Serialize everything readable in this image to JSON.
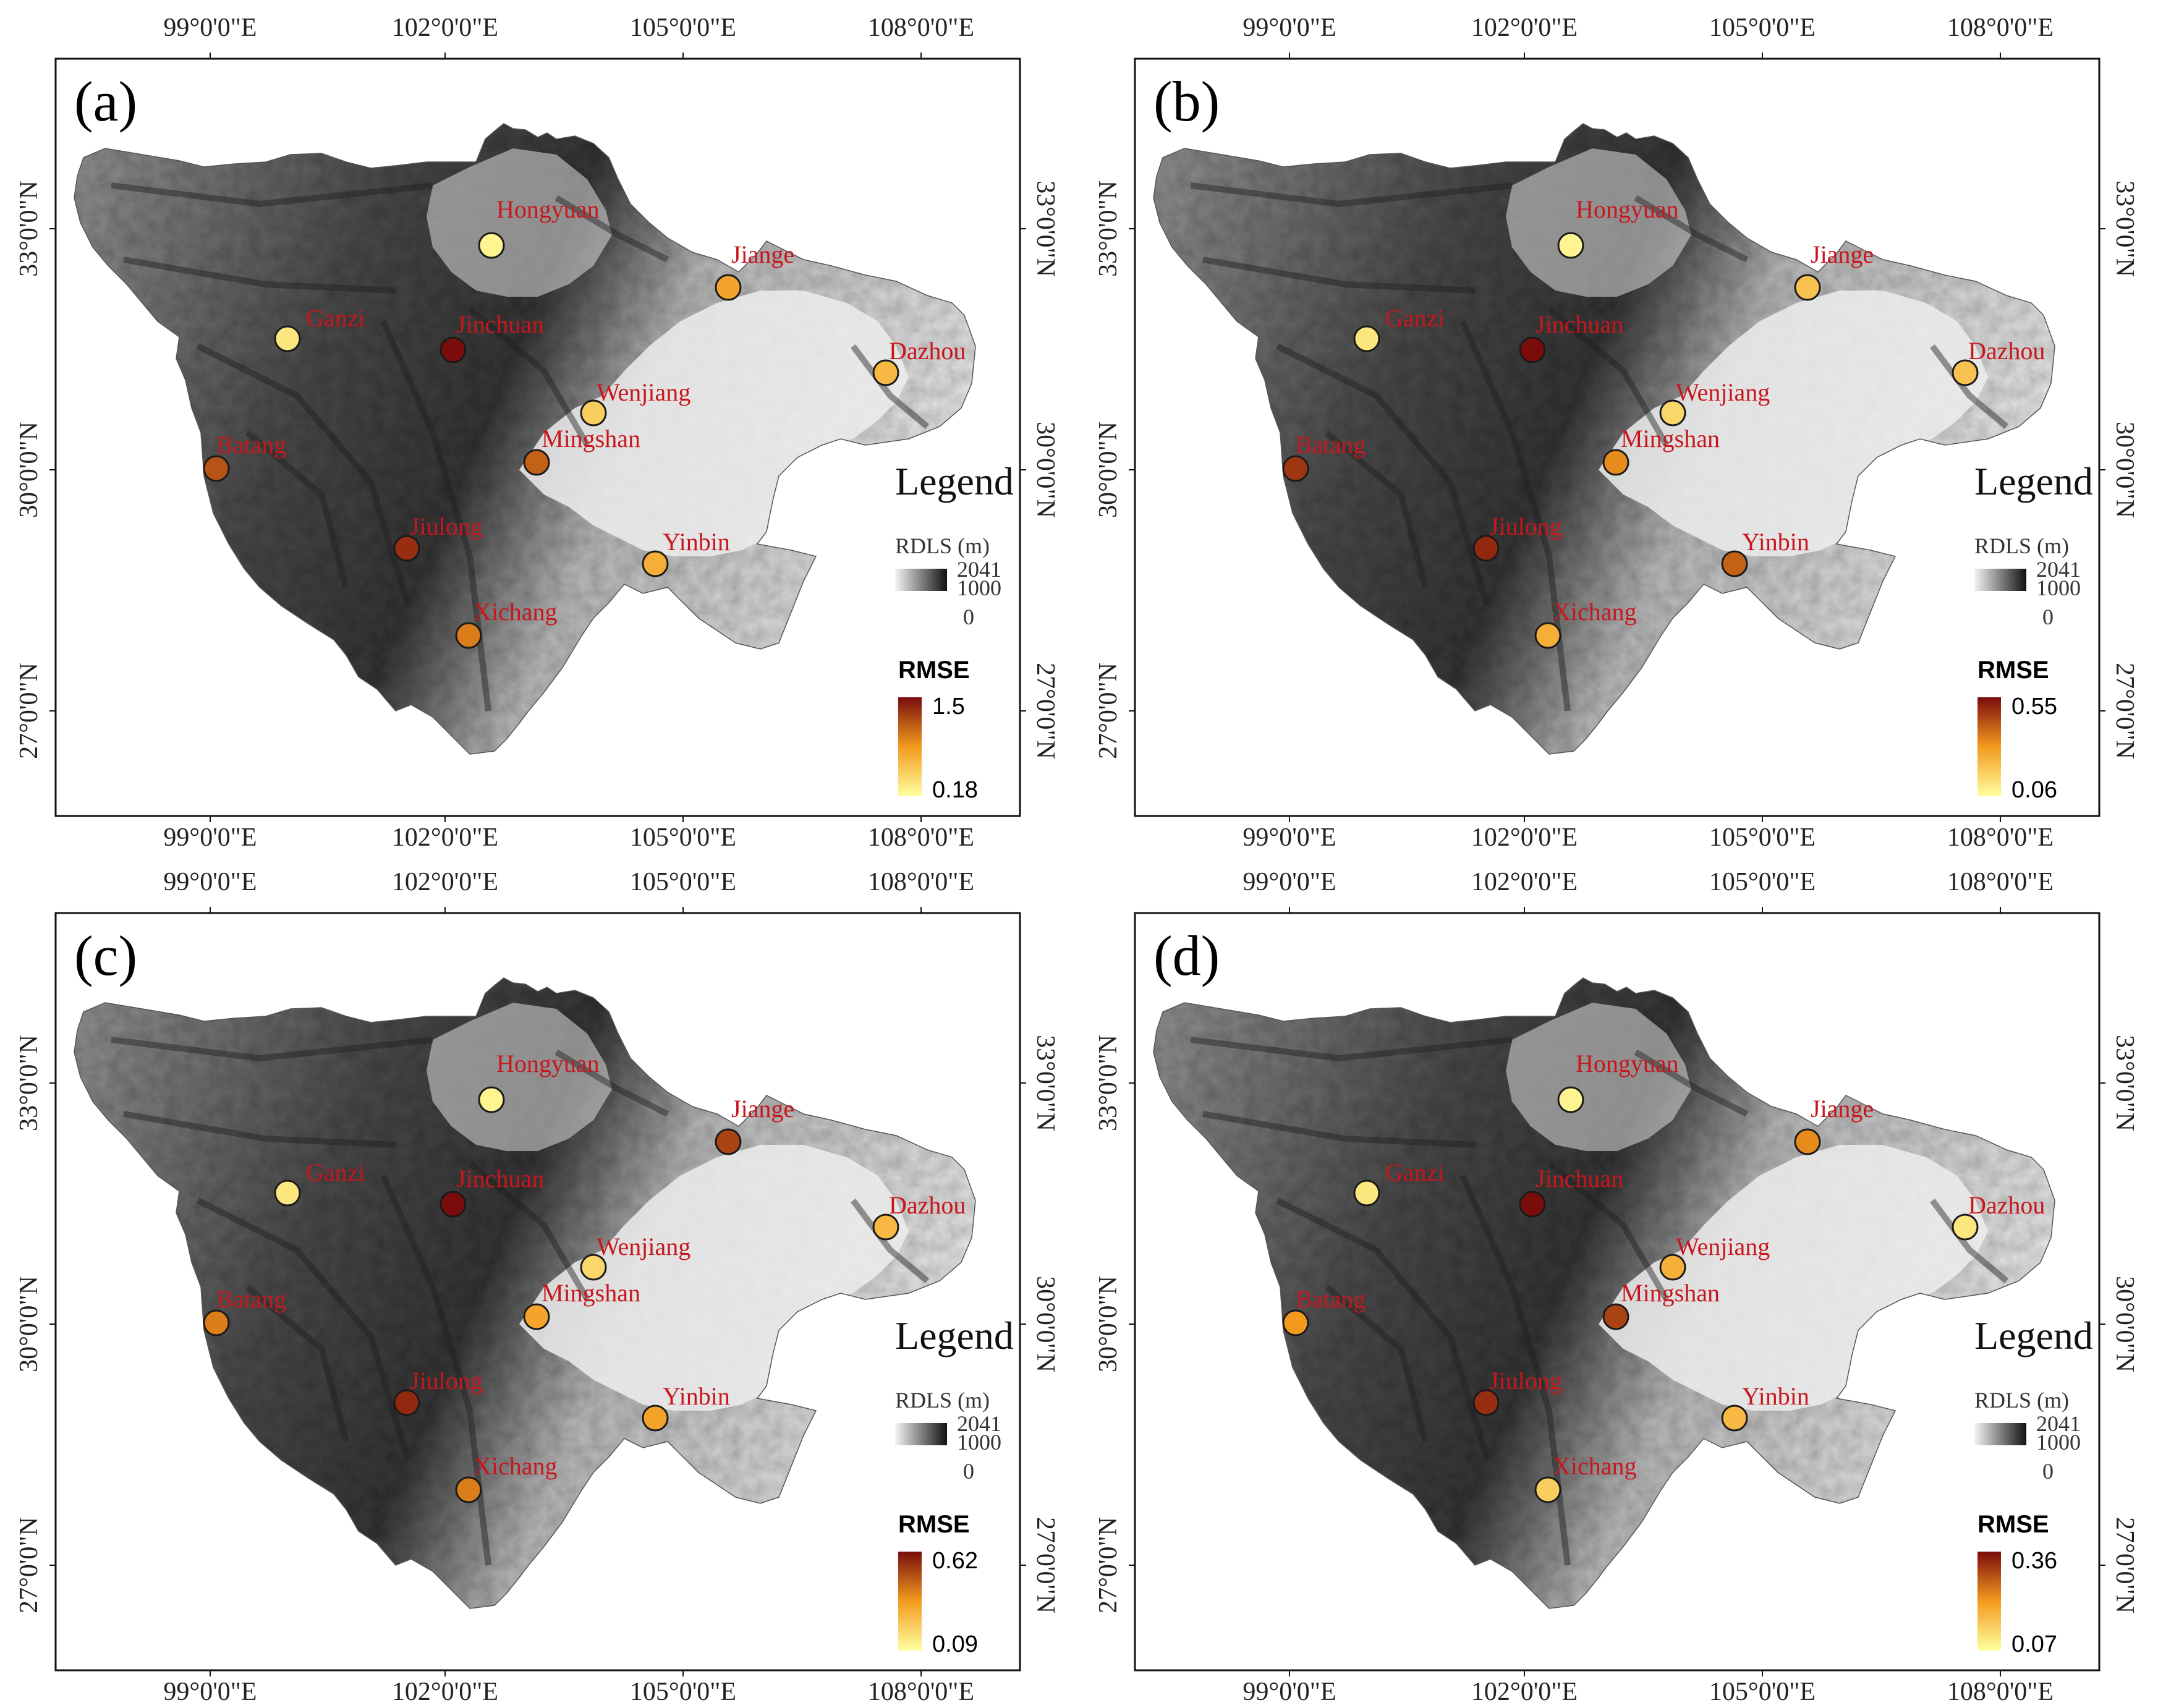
{
  "axes": {
    "top_lon": [
      "99°0'0\"E",
      "102°0'0\"E",
      "105°0'0\"E",
      "108°0'0\"E"
    ],
    "bottom_lon": [
      "99°0'0\"E",
      "102°0'0\"E",
      "105°0'0\"E",
      "108°0'0\"E"
    ],
    "lat": [
      "33°0'0\"N",
      "30°0'0\"N",
      "27°0'0\"N"
    ]
  },
  "legend": {
    "title": "Legend",
    "rdls_label": "RDLS (m)",
    "rdls_values": [
      "2041",
      "1000",
      "0"
    ],
    "rmse_label": "RMSE"
  },
  "colors": {
    "rmse_low": "#ffff9e",
    "rmse_mid": "#f39a1e",
    "rmse_high": "#7a0c0c",
    "station_label": "#c8161d",
    "relief_dark": "#2a2a2a",
    "relief_light": "#f2f2f2"
  },
  "panels": [
    {
      "letter": "(a)",
      "rmse_max": "1.5",
      "rmse_min": "0.18",
      "stations": [
        {
          "name": "Hongyuan",
          "level": 0.05
        },
        {
          "name": "Jiange",
          "level": 0.45
        },
        {
          "name": "Ganzi",
          "level": 0.12
        },
        {
          "name": "Jinchuan",
          "level": 1.0
        },
        {
          "name": "Dazhou",
          "level": 0.35
        },
        {
          "name": "Wenjiang",
          "level": 0.25
        },
        {
          "name": "Batang",
          "level": 0.75
        },
        {
          "name": "Mingshan",
          "level": 0.7
        },
        {
          "name": "Jiulong",
          "level": 0.88
        },
        {
          "name": "Yinbin",
          "level": 0.4
        },
        {
          "name": "Xichang",
          "level": 0.6
        }
      ]
    },
    {
      "letter": "(b)",
      "rmse_max": "0.55",
      "rmse_min": "0.06",
      "stations": [
        {
          "name": "Hongyuan",
          "level": 0.05
        },
        {
          "name": "Jiange",
          "level": 0.3
        },
        {
          "name": "Ganzi",
          "level": 0.12
        },
        {
          "name": "Jinchuan",
          "level": 1.0
        },
        {
          "name": "Dazhou",
          "level": 0.3
        },
        {
          "name": "Wenjiang",
          "level": 0.2
        },
        {
          "name": "Batang",
          "level": 0.85
        },
        {
          "name": "Mingshan",
          "level": 0.55
        },
        {
          "name": "Jiulong",
          "level": 0.9
        },
        {
          "name": "Yinbin",
          "level": 0.7
        },
        {
          "name": "Xichang",
          "level": 0.4
        }
      ]
    },
    {
      "letter": "(c)",
      "rmse_max": "0.62",
      "rmse_min": "0.09",
      "stations": [
        {
          "name": "Hongyuan",
          "level": 0.05
        },
        {
          "name": "Jiange",
          "level": 0.8
        },
        {
          "name": "Ganzi",
          "level": 0.12
        },
        {
          "name": "Jinchuan",
          "level": 1.0
        },
        {
          "name": "Dazhou",
          "level": 0.35
        },
        {
          "name": "Wenjiang",
          "level": 0.2
        },
        {
          "name": "Batang",
          "level": 0.6
        },
        {
          "name": "Mingshan",
          "level": 0.45
        },
        {
          "name": "Jiulong",
          "level": 0.9
        },
        {
          "name": "Yinbin",
          "level": 0.45
        },
        {
          "name": "Xichang",
          "level": 0.6
        }
      ]
    },
    {
      "letter": "(d)",
      "rmse_max": "0.36",
      "rmse_min": "0.07",
      "stations": [
        {
          "name": "Hongyuan",
          "level": 0.05
        },
        {
          "name": "Jiange",
          "level": 0.55
        },
        {
          "name": "Ganzi",
          "level": 0.12
        },
        {
          "name": "Jinchuan",
          "level": 1.0
        },
        {
          "name": "Dazhou",
          "level": 0.12
        },
        {
          "name": "Wenjiang",
          "level": 0.4
        },
        {
          "name": "Batang",
          "level": 0.5
        },
        {
          "name": "Mingshan",
          "level": 0.8
        },
        {
          "name": "Jiulong",
          "level": 0.88
        },
        {
          "name": "Yinbin",
          "level": 0.35
        },
        {
          "name": "Xichang",
          "level": 0.25
        }
      ]
    }
  ]
}
